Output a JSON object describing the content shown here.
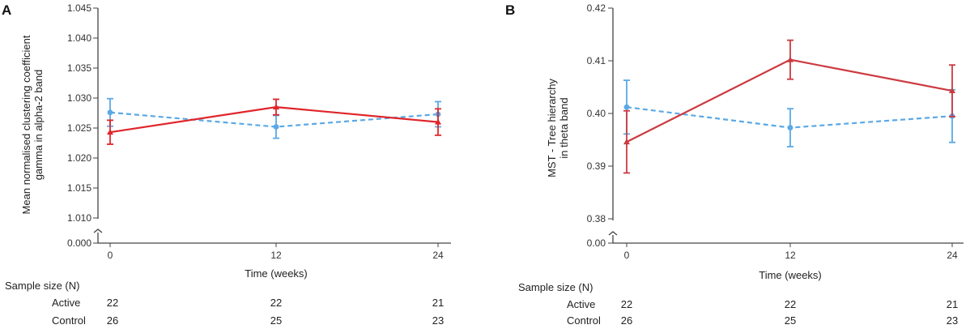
{
  "chart_data": [
    {
      "panel": "A",
      "type": "line",
      "title": "",
      "xlabel": "Time (weeks)",
      "ylabel_lines": [
        "Mean normalised clustering coefficient",
        "gamma in alpha-2 band"
      ],
      "x_ticks": [
        "0",
        "12",
        "24"
      ],
      "x": [
        0,
        12,
        24
      ],
      "y_ticks": [
        "1.045",
        "1.040",
        "1.035",
        "1.030",
        "1.025",
        "1.020",
        "1.015",
        "1.010"
      ],
      "y_ticks_values": [
        1.045,
        1.04,
        1.035,
        1.03,
        1.025,
        1.02,
        1.015,
        1.01
      ],
      "y_break_label": "0.000",
      "ylim": [
        1.01,
        1.045
      ],
      "series": [
        {
          "name": "Control",
          "style": "dashed",
          "marker": "circle",
          "color": "#5aa9e6",
          "values": [
            1.0276,
            1.0252,
            1.0273
          ],
          "error": [
            0.0023,
            0.0019,
            0.0021
          ]
        },
        {
          "name": "Active",
          "style": "solid",
          "marker": "triangle",
          "color": "#e0252b",
          "values": [
            1.0243,
            1.0285,
            1.026
          ],
          "error": [
            0.002,
            0.0013,
            0.0022
          ]
        }
      ],
      "sample_size": {
        "heading": "Sample size (N)",
        "rows": [
          {
            "label": "Active",
            "values": [
              "22",
              "22",
              "21"
            ]
          },
          {
            "label": "Control",
            "values": [
              "26",
              "25",
              "23"
            ]
          }
        ]
      }
    },
    {
      "panel": "B",
      "type": "line",
      "title": "",
      "xlabel": "Time (weeks)",
      "ylabel_lines": [
        "MST - Tree hierarchy",
        "in theta band"
      ],
      "x_ticks": [
        "0",
        "12",
        "24"
      ],
      "x": [
        0,
        12,
        24
      ],
      "y_ticks": [
        "0.42",
        "0.41",
        "0.40",
        "0.39",
        "0.38"
      ],
      "y_ticks_values": [
        0.42,
        0.41,
        0.4,
        0.39,
        0.38
      ],
      "y_break_label": "0.00",
      "ylim": [
        0.38,
        0.42
      ],
      "series": [
        {
          "name": "Control",
          "style": "dashed",
          "marker": "circle",
          "color": "#5aa9e6",
          "values": [
            0.4012,
            0.3973,
            0.3995
          ],
          "error": [
            0.0051,
            0.0036,
            0.005
          ]
        },
        {
          "name": "Active",
          "style": "solid",
          "marker": "triangle",
          "color": "#cc3a40",
          "values": [
            0.3946,
            0.4102,
            0.4043
          ],
          "error": [
            0.0059,
            0.0037,
            0.0049
          ]
        }
      ],
      "sample_size": {
        "heading": "Sample size (N)",
        "rows": [
          {
            "label": "Active",
            "values": [
              "22",
              "22",
              "21"
            ]
          },
          {
            "label": "Control",
            "values": [
              "26",
              "25",
              "23"
            ]
          }
        ]
      }
    }
  ]
}
